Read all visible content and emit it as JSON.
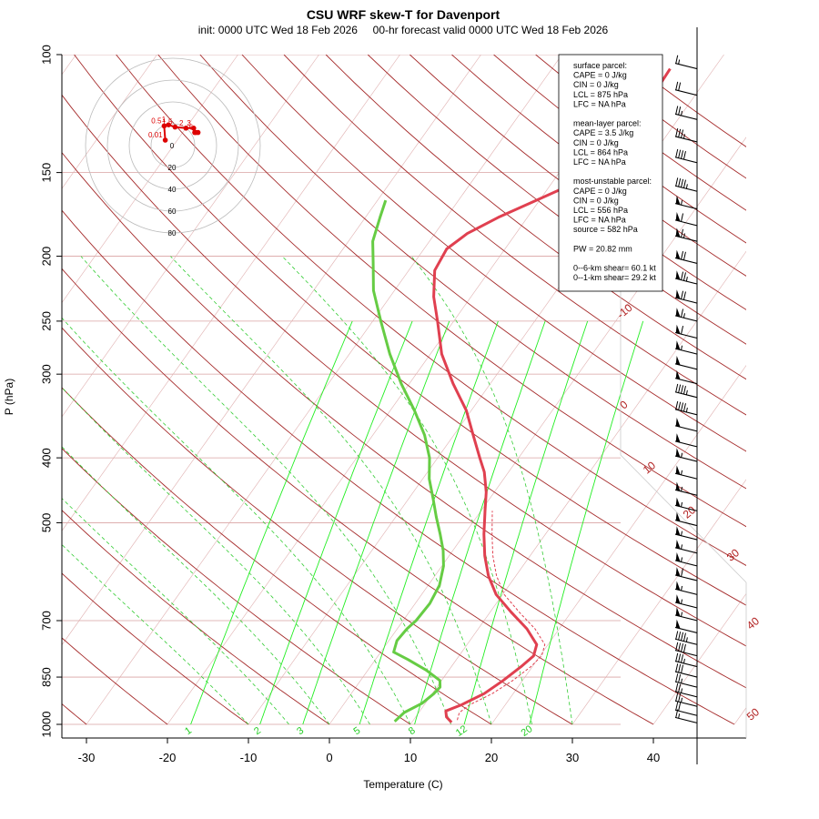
{
  "chart_data": {
    "type": "line",
    "title": "CSU WRF skew-T for Davenport",
    "subtitle": "init: 0000 UTC Wed 18 Feb 2026     00-hr forecast valid 0000 UTC Wed 18 Feb 2026",
    "xlabel": "Temperature (C)",
    "ylabel": "P (hPa)",
    "x_ticks": [
      -30,
      -20,
      -10,
      0,
      10,
      20,
      30,
      40
    ],
    "p_ticks": [
      100,
      150,
      200,
      250,
      300,
      400,
      500,
      700,
      850,
      1000
    ],
    "isotherm_labels": [
      "-10",
      "0",
      "10",
      "20",
      "30",
      "40",
      "50"
    ],
    "mixing_ratio_labels": [
      "1",
      "2",
      "3",
      "5",
      "8",
      "12",
      "20"
    ],
    "series": [
      {
        "kind": "temperature",
        "color": "#e04050",
        "points": [
          {
            "p": 993,
            "t": 14.9
          },
          {
            "p": 975,
            "t": 13.8
          },
          {
            "p": 955,
            "t": 13.2
          },
          {
            "p": 935,
            "t": 14.6
          },
          {
            "p": 900,
            "t": 16.4
          },
          {
            "p": 860,
            "t": 17.6
          },
          {
            "p": 820,
            "t": 18.6
          },
          {
            "p": 790,
            "t": 19.2
          },
          {
            "p": 760,
            "t": 18.6
          },
          {
            "p": 720,
            "t": 16.0
          },
          {
            "p": 680,
            "t": 12.6
          },
          {
            "p": 640,
            "t": 9.2
          },
          {
            "p": 600,
            "t": 6.6
          },
          {
            "p": 560,
            "t": 4.4
          },
          {
            "p": 520,
            "t": 2.4
          },
          {
            "p": 480,
            "t": 0.5
          },
          {
            "p": 450,
            "t": -1.0
          },
          {
            "p": 420,
            "t": -3.0
          },
          {
            "p": 400,
            "t": -4.8
          },
          {
            "p": 370,
            "t": -7.6
          },
          {
            "p": 340,
            "t": -10.6
          },
          {
            "p": 310,
            "t": -14.6
          },
          {
            "p": 280,
            "t": -18.6
          },
          {
            "p": 250,
            "t": -22.0
          },
          {
            "p": 230,
            "t": -24.6
          },
          {
            "p": 210,
            "t": -26.8
          },
          {
            "p": 195,
            "t": -27.2
          },
          {
            "p": 185,
            "t": -26.0
          },
          {
            "p": 175,
            "t": -23.6
          },
          {
            "p": 165,
            "t": -20.4
          },
          {
            "p": 155,
            "t": -17.0
          },
          {
            "p": 145,
            "t": -15.8
          },
          {
            "p": 135,
            "t": -15.4
          },
          {
            "p": 125,
            "t": -15.0
          },
          {
            "p": 115,
            "t": -15.2
          },
          {
            "p": 105,
            "t": -15.4
          }
        ]
      },
      {
        "kind": "dewpoint",
        "color": "#66cc44",
        "points": [
          {
            "p": 990,
            "t": 7.8
          },
          {
            "p": 960,
            "t": 8.2
          },
          {
            "p": 930,
            "t": 9.6
          },
          {
            "p": 900,
            "t": 10.2
          },
          {
            "p": 880,
            "t": 10.4
          },
          {
            "p": 860,
            "t": 9.8
          },
          {
            "p": 830,
            "t": 7.2
          },
          {
            "p": 800,
            "t": 4.0
          },
          {
            "p": 780,
            "t": 1.6
          },
          {
            "p": 750,
            "t": 1.0
          },
          {
            "p": 720,
            "t": 1.2
          },
          {
            "p": 700,
            "t": 1.6
          },
          {
            "p": 660,
            "t": 1.8
          },
          {
            "p": 620,
            "t": 1.4
          },
          {
            "p": 580,
            "t": 0.2
          },
          {
            "p": 550,
            "t": -1.2
          },
          {
            "p": 520,
            "t": -3.0
          },
          {
            "p": 490,
            "t": -5.0
          },
          {
            "p": 460,
            "t": -7.0
          },
          {
            "p": 430,
            "t": -9.2
          },
          {
            "p": 400,
            "t": -11.0
          },
          {
            "p": 370,
            "t": -13.6
          },
          {
            "p": 340,
            "t": -17.0
          },
          {
            "p": 310,
            "t": -21.0
          },
          {
            "p": 280,
            "t": -25.0
          },
          {
            "p": 250,
            "t": -29.0
          },
          {
            "p": 225,
            "t": -32.6
          },
          {
            "p": 205,
            "t": -35.0
          },
          {
            "p": 190,
            "t": -37.0
          },
          {
            "p": 175,
            "t": -38.2
          },
          {
            "p": 165,
            "t": -39.0
          }
        ]
      },
      {
        "kind": "parcel",
        "color": "#e04050",
        "points": [
          {
            "p": 985,
            "t": 15.4
          },
          {
            "p": 960,
            "t": 15.0
          },
          {
            "p": 935,
            "t": 15.6
          },
          {
            "p": 900,
            "t": 17.4
          },
          {
            "p": 860,
            "t": 18.8
          },
          {
            "p": 820,
            "t": 19.8
          },
          {
            "p": 790,
            "t": 20.2
          },
          {
            "p": 760,
            "t": 19.6
          },
          {
            "p": 720,
            "t": 17.0
          },
          {
            "p": 680,
            "t": 13.6
          },
          {
            "p": 640,
            "t": 10.2
          },
          {
            "p": 600,
            "t": 7.6
          },
          {
            "p": 560,
            "t": 5.4
          },
          {
            "p": 520,
            "t": 3.4
          },
          {
            "p": 480,
            "t": 1.4
          }
        ]
      }
    ],
    "wind_barbs": [
      {
        "p": 105,
        "speed": 15
      },
      {
        "p": 115,
        "speed": 20
      },
      {
        "p": 125,
        "speed": 25
      },
      {
        "p": 135,
        "speed": 35
      },
      {
        "p": 145,
        "speed": 40
      },
      {
        "p": 160,
        "speed": 45
      },
      {
        "p": 170,
        "speed": 55
      },
      {
        "p": 180,
        "speed": 60
      },
      {
        "p": 190,
        "speed": 65
      },
      {
        "p": 205,
        "speed": 70
      },
      {
        "p": 220,
        "speed": 75
      },
      {
        "p": 235,
        "speed": 70
      },
      {
        "p": 250,
        "speed": 65
      },
      {
        "p": 265,
        "speed": 60
      },
      {
        "p": 280,
        "speed": 55
      },
      {
        "p": 295,
        "speed": 50
      },
      {
        "p": 310,
        "speed": 50
      },
      {
        "p": 325,
        "speed": 45
      },
      {
        "p": 345,
        "speed": 45
      },
      {
        "p": 365,
        "speed": 50
      },
      {
        "p": 385,
        "speed": 50
      },
      {
        "p": 405,
        "speed": 55
      },
      {
        "p": 430,
        "speed": 55
      },
      {
        "p": 455,
        "speed": 55
      },
      {
        "p": 480,
        "speed": 55
      },
      {
        "p": 505,
        "speed": 50
      },
      {
        "p": 530,
        "speed": 55
      },
      {
        "p": 555,
        "speed": 55
      },
      {
        "p": 580,
        "speed": 55
      },
      {
        "p": 610,
        "speed": 60
      },
      {
        "p": 640,
        "speed": 55
      },
      {
        "p": 670,
        "speed": 55
      },
      {
        "p": 700,
        "speed": 55
      },
      {
        "p": 730,
        "speed": 50
      },
      {
        "p": 760,
        "speed": 45
      },
      {
        "p": 790,
        "speed": 40
      },
      {
        "p": 820,
        "speed": 35
      },
      {
        "p": 850,
        "speed": 30
      },
      {
        "p": 880,
        "speed": 25
      },
      {
        "p": 910,
        "speed": 25
      },
      {
        "p": 940,
        "speed": 25
      },
      {
        "p": 970,
        "speed": 20
      },
      {
        "p": 995,
        "speed": 15
      }
    ],
    "hodograph": {
      "ring_labels": [
        "0",
        "20",
        "40",
        "60",
        "80"
      ],
      "points": [
        {
          "label": "0.01",
          "u": -7,
          "v": 5
        },
        {
          "label": "0.5",
          "u": -8,
          "v": 18
        },
        {
          "label": "1",
          "u": -4,
          "v": 19
        },
        {
          "label": "1.5",
          "u": 2,
          "v": 17
        },
        {
          "label": "2",
          "u": 12,
          "v": 16
        },
        {
          "label": "3",
          "u": 19,
          "v": 16
        },
        {
          "label": "6",
          "u": 21,
          "v": 12
        },
        {
          "label": "",
          "u": 23,
          "v": 12
        },
        {
          "label": "",
          "u": 20,
          "v": 12
        }
      ]
    },
    "stats": {
      "lines": [
        "surface parcel:",
        "CAPE = 0 J/kg",
        "CIN = 0 J/kg",
        "LCL = 875 hPa",
        "LFC = NA hPa",
        "",
        "mean-layer parcel:",
        "CAPE = 3.5 J/kg",
        "CIN = 0 J/kg",
        "LCL = 864 hPa",
        "LFC = NA hPa",
        "",
        "most-unstable parcel:",
        "CAPE = 0 J/kg",
        "CIN = 0 J/kg",
        "LCL = 556 hPa",
        "LFC = NA hPa",
        "source = 582 hPa",
        "",
        "PW =  20.82 mm",
        "",
        "0--6-km shear= 60.1 kt",
        "0--1-km shear= 29.2 kt"
      ]
    }
  }
}
